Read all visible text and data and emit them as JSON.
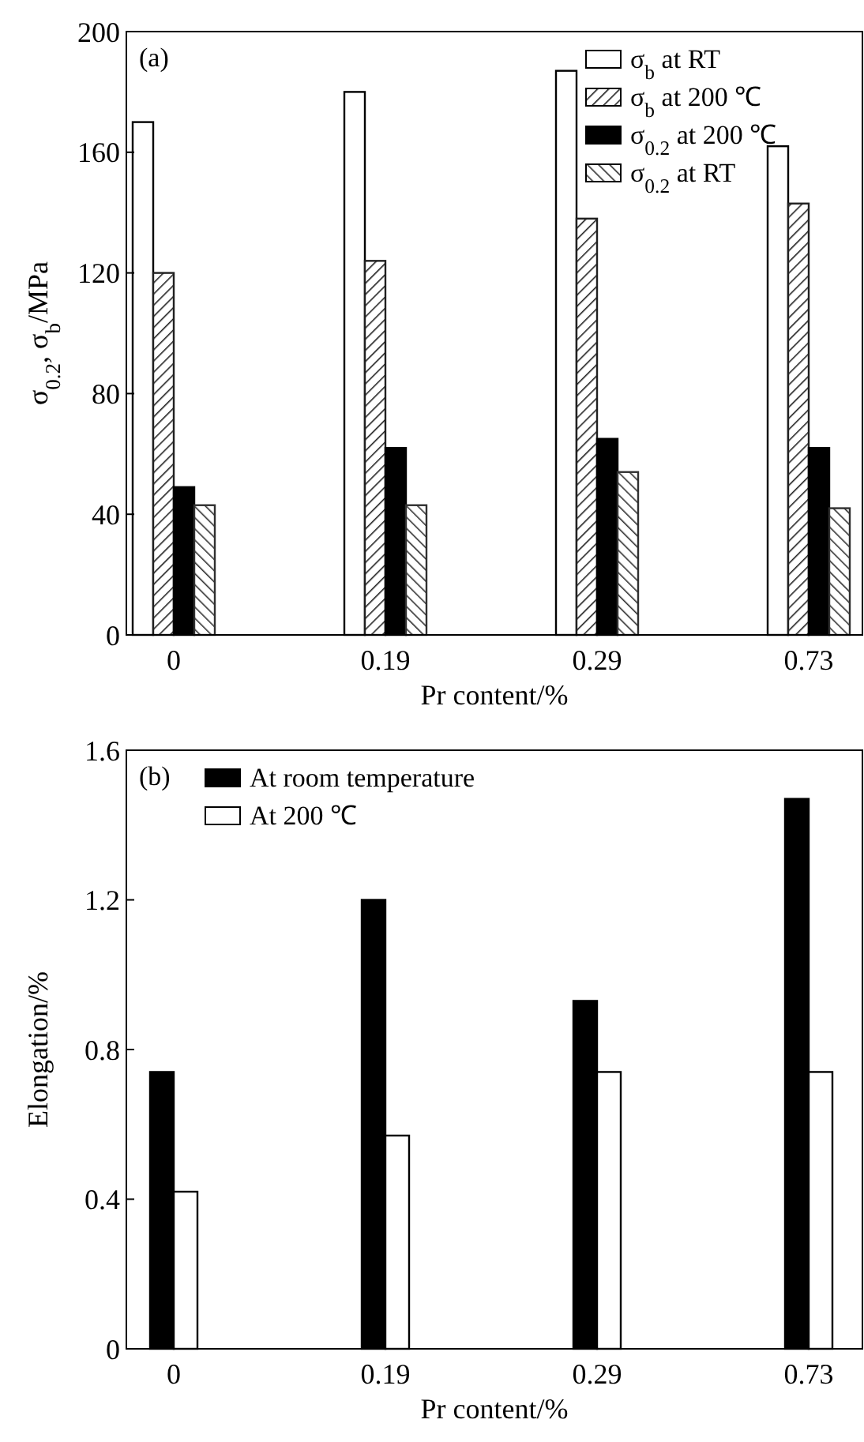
{
  "chart_data": [
    {
      "type": "bar",
      "categories": [
        "0",
        "0.19",
        "0.29",
        "0.73"
      ],
      "xlabel": "Pr content/%",
      "ylabel": "σ$_{0.2}$, σ$_{b}$/MPa",
      "ylim": [
        0,
        200
      ],
      "yticks": [
        0,
        40,
        80,
        120,
        160,
        200
      ],
      "legend": "top right",
      "annotations": [
        "(a)"
      ],
      "series": [
        {
          "name": "σ$_{b}$ at RT",
          "color": "#ffffff",
          "values": [
            170,
            180,
            187,
            162
          ]
        },
        {
          "name": "σ$_{b}$ at 200 ℃",
          "color": "#202020",
          "values": [
            120,
            124,
            138,
            143
          ]
        },
        {
          "name": "σ$_{0.2}$ at 200 ℃",
          "color": "#000000",
          "values": [
            49,
            62,
            65,
            62
          ]
        },
        {
          "name": "σ$_{0.2}$ at RT",
          "color": "#303030",
          "values": [
            43,
            43,
            54,
            42
          ]
        }
      ]
    },
    {
      "type": "bar",
      "categories": [
        "0",
        "0.19",
        "0.29",
        "0.73"
      ],
      "xlabel": "Pr content/%",
      "ylabel": "Elongation/%",
      "ylim": [
        0,
        1.6
      ],
      "yticks": [
        0,
        0.4,
        0.8,
        1.2,
        1.6
      ],
      "legend": "top left",
      "annotations": [
        "(b)"
      ],
      "series": [
        {
          "name": "At room temperature",
          "color": "#000000",
          "values": [
            0.74,
            1.2,
            0.93,
            1.47
          ]
        },
        {
          "name": "At 200 ℃",
          "color": "#ffffff",
          "values": [
            0.42,
            0.57,
            0.74,
            0.74
          ]
        }
      ]
    }
  ]
}
